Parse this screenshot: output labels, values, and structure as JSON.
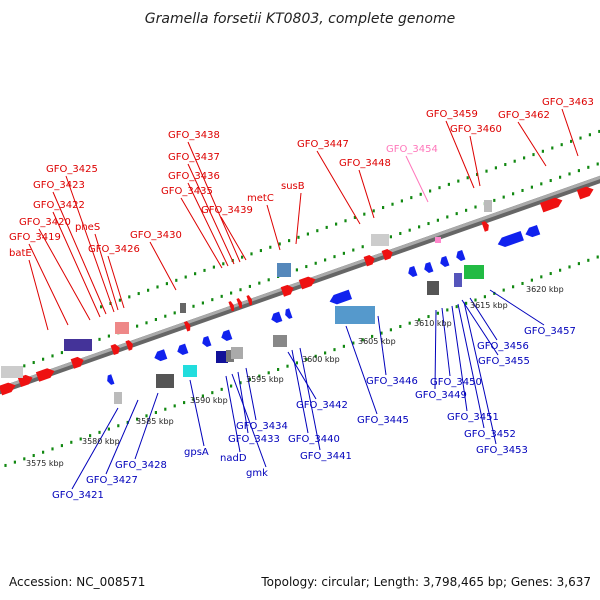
{
  "title": "Gramella forsetii KT0803, complete genome",
  "footer": {
    "accession": "Accession: NC_008571",
    "stats": "Topology: circular; Length: 3,798,465 bp; Genes: 3,637"
  },
  "colors": {
    "forward_genes": "#ee1111",
    "reverse_genes": "#1122ee",
    "forward_labels": "#dd0000",
    "reverse_labels": "#0000bb",
    "faded_label": "#ff77bb",
    "tick": "#118811",
    "backbone": "#888888"
  },
  "kbp_marks": [
    "3575 kbp",
    "3580 kbp",
    "3585 kbp",
    "3590 kbp",
    "3595 kbp",
    "3600 kbp",
    "3605 kbp",
    "3610 kbp",
    "3615 kbp",
    "3620 kbp"
  ],
  "forward_labels": [
    "batE",
    "GFO_3419",
    "GFO_3420",
    "GFO_3422",
    "GFO_3423",
    "GFO_3425",
    "pheS",
    "GFO_3426",
    "GFO_3430",
    "GFO_3435",
    "GFO_3436",
    "GFO_3437",
    "GFO_3438",
    "GFO_3439",
    "metC",
    "susB",
    "GFO_3447",
    "GFO_3448",
    "GFO_3454",
    "GFO_3459",
    "GFO_3460",
    "GFO_3462",
    "GFO_3463"
  ],
  "reverse_labels": [
    "GFO_3421",
    "GFO_3427",
    "GFO_3428",
    "gpsA",
    "nadD",
    "gmk",
    "GFO_3433",
    "GFO_3434",
    "GFO_3440",
    "GFO_3441",
    "GFO_3442",
    "GFO_3445",
    "GFO_3446",
    "GFO_3449",
    "GFO_3450",
    "GFO_3451",
    "GFO_3452",
    "GFO_3453",
    "GFO_3455",
    "GFO_3456",
    "GFO_3457"
  ]
}
